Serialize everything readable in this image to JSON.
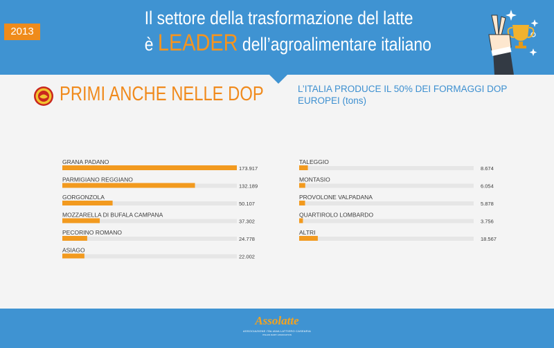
{
  "header": {
    "year": "2013",
    "title_line1": "Il settore della trasformazione del latte",
    "title_line2_prefix": "è ",
    "title_line2_highlight": "LEADER",
    "title_line2_suffix": " dell’agroalimentare italiano"
  },
  "section": {
    "title": "PRIMI ANCHE NELLE DOP",
    "subtitle": "L’ITALIA PRODUCE IL 50% DEI FORMAGGI DOP EUROPEI (tons)"
  },
  "footer": {
    "brand": "Assolatte",
    "sub": "ASSOCIAZIONE ITALIANA LATTIERO CASEARIA",
    "sub2": "ITALIAN DAIRY ASSOCIATION"
  },
  "colors": {
    "header": "#3f93d2",
    "accent": "#f08a1c",
    "bar": "#f29a1f",
    "track": "#e6e6e6",
    "text": "#3a3a3a"
  },
  "chart_data": [
    {
      "type": "bar",
      "orientation": "horizontal",
      "xlim": [
        0,
        173.917
      ],
      "categories": [
        "GRANA PADANO",
        "PARMIGIANO REGGIANO",
        "GORGONZOLA",
        "MOZZARELLA DI BUFALA CAMPANA",
        "PECORINO ROMANO",
        "ASIAGO"
      ],
      "values": [
        173.917,
        132.189,
        50.107,
        37.302,
        24.778,
        22.002
      ],
      "value_labels": [
        "173.917",
        "132.189",
        "50.107",
        "37.302",
        "24.778",
        "22.002"
      ]
    },
    {
      "type": "bar",
      "orientation": "horizontal",
      "xlim": [
        0,
        173.917
      ],
      "categories": [
        "TALEGGIO",
        "MONTASIO",
        "PROVOLONE VALPADANA",
        "QUARTIROLO LOMBARDO",
        "ALTRI"
      ],
      "values": [
        8.674,
        6.054,
        5.878,
        3.756,
        18.567
      ],
      "value_labels": [
        "8.674",
        "6.054",
        "5.878",
        "3.756",
        "18.567"
      ]
    }
  ]
}
